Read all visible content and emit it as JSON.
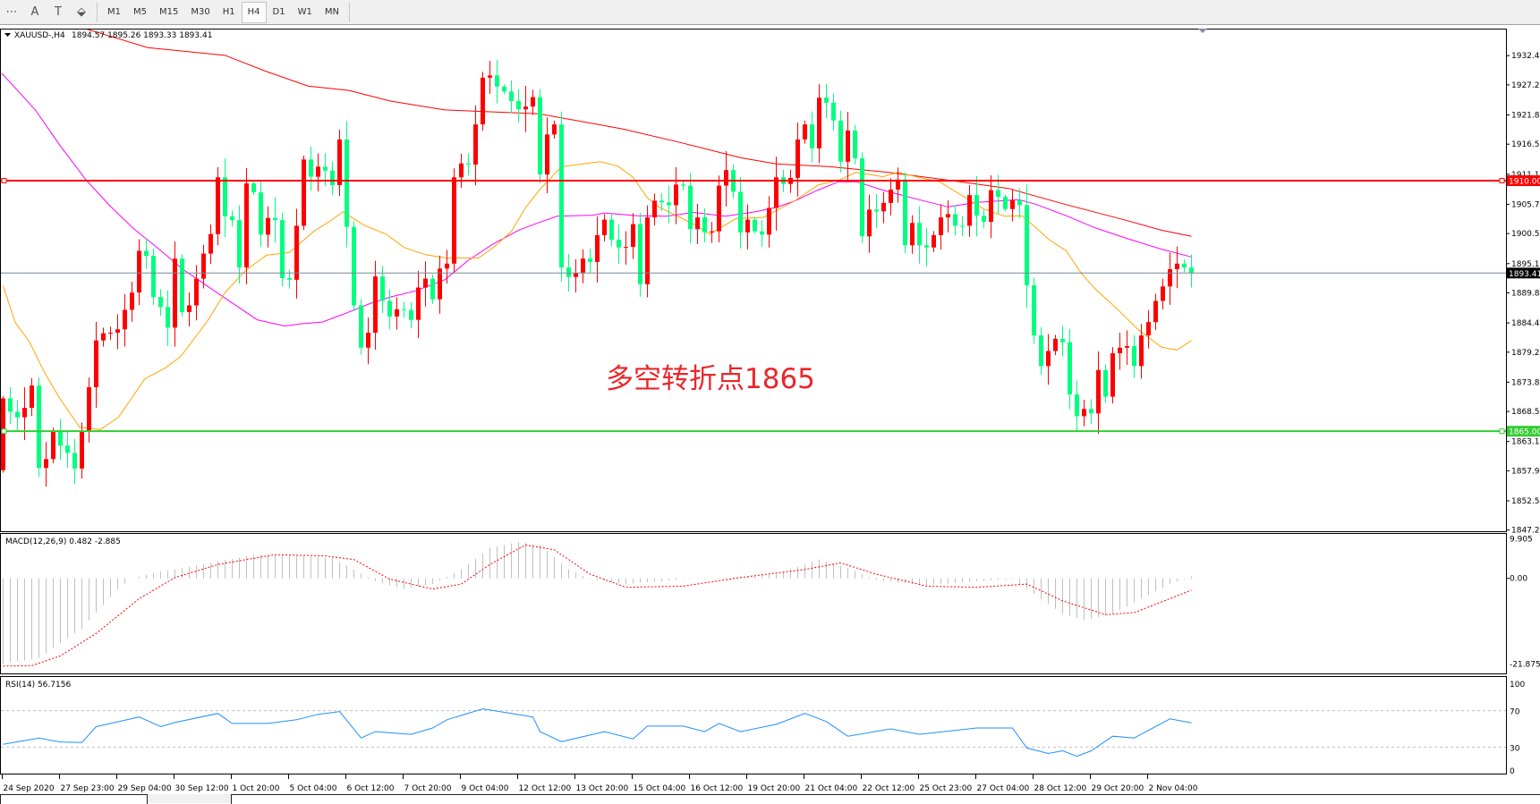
{
  "toolbar": {
    "tools": [
      {
        "name": "properties-icon",
        "glyph": "⋯"
      },
      {
        "name": "text-label-icon",
        "glyph": "A"
      },
      {
        "name": "text-box-icon",
        "glyph": "T"
      },
      {
        "name": "arrows-icon",
        "glyph": "⬙"
      }
    ],
    "timeframes": [
      "M1",
      "M5",
      "M15",
      "M30",
      "H1",
      "H4",
      "D1",
      "W1",
      "MN"
    ],
    "active_timeframe": "H4"
  },
  "chart": {
    "symbol": "XAUUSD-,H4",
    "ohlc_text": "1894.57 1895.26 1893.33 1893.41",
    "annotation": "多空转折点1865",
    "levels": [
      {
        "price": 1910.0,
        "label": "1910.00",
        "color": "#ff0000"
      },
      {
        "price": 1865.0,
        "label": "1865.00",
        "color": "#32cd32"
      }
    ],
    "current_price": {
      "price": 1893.41,
      "label": "1893.41",
      "color": "#778899"
    },
    "price_axis": [
      "1932.45",
      "1927.20",
      "1921.80",
      "1916.55",
      "1911.15",
      "1905.75",
      "1900.50",
      "1895.10",
      "1889.85",
      "1884.45",
      "1879.20",
      "1873.80",
      "1868.55",
      "1863.15",
      "1857.90",
      "1852.50",
      "1847.25"
    ]
  },
  "macd": {
    "label": "MACD(12,26,9) 0.482 -2.885",
    "axis": [
      "9.905",
      "0.00",
      "-21.875"
    ]
  },
  "rsi": {
    "label": "RSI(14) 56.7156",
    "axis": [
      "100",
      "70",
      "30",
      "0"
    ]
  },
  "time_axis": [
    "24 Sep 2020",
    "27 Sep 23:00",
    "29 Sep 04:00",
    "30 Sep 12:00",
    "1 Oct 20:00",
    "5 Oct 04:00",
    "6 Oct 12:00",
    "7 Oct 20:00",
    "9 Oct 04:00",
    "12 Oct 12:00",
    "13 Oct 20:00",
    "15 Oct 04:00",
    "16 Oct 12:00",
    "19 Oct 20:00",
    "21 Oct 04:00",
    "22 Oct 12:00",
    "25 Oct 23:00",
    "27 Oct 04:00",
    "28 Oct 12:00",
    "29 Oct 20:00",
    "2 Nov 04:00"
  ],
  "colors": {
    "bull": "#ff0000",
    "bear": "#00ff7f",
    "ma_fast": "#ffa500",
    "ma_mid": "#ff00ff",
    "ma_slow": "#ff0000",
    "macd_hist": "#c0c0c0",
    "macd_signal": "#ff0000",
    "rsi": "#1e90ff"
  },
  "chart_data": {
    "type": "candlestick",
    "bars_per_time_label": 8,
    "first_open": 1858.0,
    "closes": [
      1870.9,
      1868.5,
      1867.5,
      1869.2,
      1873.2,
      1858.4,
      1860.0,
      1864.9,
      1862.4,
      1861.1,
      1858.3,
      1864.9,
      1872.9,
      1881.3,
      1882.6,
      1882.7,
      1883.3,
      1886.8,
      1889.9,
      1897.4,
      1896.5,
      1889.1,
      1887.3,
      1883.6,
      1896.0,
      1886.4,
      1887.6,
      1892.4,
      1896.9,
      1900.4,
      1910.6,
      1903.6,
      1902.9,
      1894.4,
      1909.5,
      1907.9,
      1900.3,
      1903.3,
      1902.9,
      1892.5,
      1892.2,
      1901.9,
      1913.8,
      1910.7,
      1912.5,
      1911.8,
      1909.2,
      1917.4,
      1901.7,
      1887.6,
      1880.0,
      1882.7,
      1892.8,
      1888.4,
      1885.6,
      1886.9,
      1886.8,
      1885.0,
      1890.8,
      1892.4,
      1888.7,
      1894.2,
      1895.1,
      1910.6,
      1913.1,
      1912.9,
      1920.1,
      1928.5,
      1928.9,
      1926.9,
      1926.0,
      1924.3,
      1922.8,
      1923.3,
      1925.0,
      1911.1,
      1918.3,
      1920.1,
      1894.4,
      1892.7,
      1893.4,
      1896.0,
      1895.4,
      1900.2,
      1903.0,
      1899.4,
      1898.0,
      1898.1,
      1902.2,
      1891.4,
      1903.4,
      1906.4,
      1906.1,
      1905.6,
      1909.3,
      1909.1,
      1901.3,
      1903.4,
      1900.7,
      1900.9,
      1909.1,
      1911.9,
      1908.0,
      1900.7,
      1903.0,
      1900.9,
      1900.3,
      1905.1,
      1910.6,
      1909.4,
      1910.5,
      1917.4,
      1920.1,
      1915.8,
      1924.9,
      1924.0,
      1920.8,
      1913.4,
      1919.0,
      1914.0,
      1900.0,
      1904.8,
      1904.5,
      1906.0,
      1908.4,
      1910.2,
      1898.4,
      1902.4,
      1898.4,
      1898.0,
      1900.2,
      1903.4,
      1904.0,
      1901.9,
      1901.9,
      1907.4,
      1903.7,
      1902.6,
      1908.3,
      1907.1,
      1904.9,
      1906.5,
      1905.6,
      1891.2,
      1882.2,
      1876.7,
      1879.4,
      1881.6,
      1881.0,
      1871.6,
      1867.7,
      1869.0,
      1868.2,
      1876.0,
      1871.2,
      1879.0,
      1880.0,
      1880.3,
      1876.7,
      1882.2,
      1884.6,
      1888.4,
      1891.0,
      1894.1,
      1895.1,
      1894.4,
      1893.41
    ],
    "ylim": [
      1847.0,
      1937.1
    ],
    "moving_averages": {
      "fast": [
        [
          0,
          1891.1
        ],
        [
          1.7,
          1884.5
        ],
        [
          3.7,
          1881.0
        ],
        [
          5.8,
          1875.5
        ],
        [
          7.9,
          1870.9
        ],
        [
          10.7,
          1865.7
        ],
        [
          13.6,
          1865.3
        ],
        [
          16.1,
          1867.5
        ],
        [
          19.8,
          1874.4
        ],
        [
          22.7,
          1876.4
        ],
        [
          24.8,
          1878.4
        ],
        [
          28.5,
          1884.7
        ],
        [
          31,
          1889.9
        ],
        [
          33.9,
          1893.9
        ],
        [
          36.8,
          1896.6
        ],
        [
          40,
          1897.1
        ],
        [
          43.4,
          1900.9
        ],
        [
          45.5,
          1902.6
        ],
        [
          47.5,
          1904.4
        ],
        [
          50.4,
          1902.0
        ],
        [
          53.5,
          1900.4
        ],
        [
          56,
          1898.0
        ],
        [
          59,
          1896.7
        ],
        [
          61.9,
          1896.1
        ],
        [
          66.4,
          1896.1
        ],
        [
          68.5,
          1898.0
        ],
        [
          71,
          1900.9
        ],
        [
          73,
          1905.2
        ],
        [
          75.1,
          1908.6
        ],
        [
          78,
          1912.5
        ],
        [
          83.4,
          1913.4
        ],
        [
          85.9,
          1912.6
        ],
        [
          88,
          1910.6
        ],
        [
          90,
          1906.9
        ],
        [
          91.7,
          1905.2
        ],
        [
          94.1,
          1903.7
        ],
        [
          96.7,
          1902.0
        ],
        [
          98.7,
          1900.4
        ],
        [
          102.4,
          1903.2
        ],
        [
          106.2,
          1903.4
        ],
        [
          110.5,
          1906.3
        ],
        [
          113.8,
          1909.2
        ],
        [
          116.7,
          1910.1
        ],
        [
          119.2,
          1911.5
        ],
        [
          122.9,
          1910.7
        ],
        [
          125,
          1911.5
        ],
        [
          127.9,
          1910.6
        ],
        [
          130.8,
          1909.8
        ],
        [
          134.1,
          1907.2
        ],
        [
          137,
          1904.9
        ],
        [
          139.9,
          1903.6
        ],
        [
          142.3,
          1903.7
        ],
        [
          144.4,
          1901.4
        ],
        [
          146.1,
          1899.4
        ],
        [
          148.5,
          1897.4
        ],
        [
          150.6,
          1893.4
        ],
        [
          152.6,
          1890.5
        ],
        [
          155.6,
          1887.0
        ],
        [
          158.5,
          1883.3
        ],
        [
          161.8,
          1880.1
        ],
        [
          164,
          1879.6
        ],
        [
          166,
          1881.3
        ]
      ],
      "mid": [
        [
          -0.2,
          1929.3
        ],
        [
          4.5,
          1922.7
        ],
        [
          7.9,
          1916.4
        ],
        [
          11.6,
          1910.1
        ],
        [
          14.9,
          1905.5
        ],
        [
          18.2,
          1901.4
        ],
        [
          21.5,
          1898.0
        ],
        [
          25.2,
          1894.0
        ],
        [
          28.5,
          1891.1
        ],
        [
          31.8,
          1888.2
        ],
        [
          35.5,
          1885.0
        ],
        [
          39.3,
          1883.9
        ],
        [
          41.7,
          1884.3
        ],
        [
          44.6,
          1884.6
        ],
        [
          47.9,
          1886.2
        ],
        [
          51.2,
          1887.9
        ],
        [
          54.1,
          1889.1
        ],
        [
          57.6,
          1890.2
        ],
        [
          61.7,
          1892.2
        ],
        [
          65,
          1895.7
        ],
        [
          68.3,
          1898.5
        ],
        [
          72,
          1901.1
        ],
        [
          74.9,
          1902.5
        ],
        [
          77.4,
          1903.6
        ],
        [
          82.4,
          1903.8
        ],
        [
          84,
          1904.2
        ],
        [
          88.6,
          1903.7
        ],
        [
          92.7,
          1903.6
        ],
        [
          96.4,
          1904.3
        ],
        [
          100.9,
          1903.6
        ],
        [
          105,
          1904.4
        ],
        [
          108,
          1905.2
        ],
        [
          110.5,
          1906.3
        ],
        [
          113.8,
          1908.3
        ],
        [
          116.7,
          1909.8
        ],
        [
          119.2,
          1909.8
        ],
        [
          122.9,
          1908.3
        ],
        [
          127.9,
          1906.6
        ],
        [
          132,
          1905.3
        ],
        [
          136.1,
          1906.1
        ],
        [
          141.9,
          1906.6
        ],
        [
          144.4,
          1905.7
        ],
        [
          148.5,
          1903.7
        ],
        [
          152.6,
          1901.5
        ],
        [
          156.8,
          1899.7
        ],
        [
          161.8,
          1897.7
        ],
        [
          166,
          1896.3
        ]
      ],
      "slow": [
        [
          11.2,
          1937.4
        ],
        [
          20.2,
          1933.9
        ],
        [
          31,
          1932.5
        ],
        [
          36.8,
          1929.6
        ],
        [
          42.6,
          1927.0
        ],
        [
          48.3,
          1926.2
        ],
        [
          54.1,
          1924.3
        ],
        [
          61.7,
          1922.7
        ],
        [
          74.9,
          1922.0
        ],
        [
          86.5,
          1919.3
        ],
        [
          94.8,
          1916.8
        ],
        [
          103.1,
          1914.1
        ],
        [
          108,
          1913.0
        ],
        [
          115.5,
          1912.5
        ],
        [
          123.7,
          1911.5
        ],
        [
          132,
          1910.1
        ],
        [
          140.4,
          1908.6
        ],
        [
          148.5,
          1905.7
        ],
        [
          156.8,
          1902.9
        ],
        [
          161.8,
          1901.1
        ],
        [
          166,
          1900.0
        ]
      ]
    },
    "macd_main": [
      [
        0,
        -20.9
      ],
      [
        5,
        -19.5
      ],
      [
        11,
        -12.3
      ],
      [
        16,
        -2.6
      ],
      [
        18,
        0
      ],
      [
        22,
        1.7
      ],
      [
        27,
        3.1
      ],
      [
        35,
        5.8
      ],
      [
        41,
        5.5
      ],
      [
        46,
        5.0
      ],
      [
        49,
        2.2
      ],
      [
        52,
        -0.7
      ],
      [
        56,
        -2.6
      ],
      [
        60,
        -1.4
      ],
      [
        64,
        2.2
      ],
      [
        68,
        7.5
      ],
      [
        72,
        8.9
      ],
      [
        75,
        8.2
      ],
      [
        79,
        2.2
      ],
      [
        82,
        -0.2
      ],
      [
        87,
        -1.4
      ],
      [
        95,
        -0.2
      ],
      [
        101,
        0.2
      ],
      [
        108,
        1.0
      ],
      [
        114,
        4.6
      ],
      [
        118,
        2.6
      ],
      [
        122,
        -0.5
      ],
      [
        129,
        -1.7
      ],
      [
        136,
        -0.7
      ],
      [
        141,
        -0.2
      ],
      [
        144,
        -3.8
      ],
      [
        148,
        -8.7
      ],
      [
        151,
        -10.3
      ],
      [
        155,
        -8.7
      ],
      [
        159,
        -5.0
      ],
      [
        163,
        -1.4
      ],
      [
        166,
        0.482
      ]
    ],
    "macd_signal": [
      [
        0,
        -21.5
      ],
      [
        4,
        -21.4
      ],
      [
        8,
        -19.0
      ],
      [
        13,
        -13.5
      ],
      [
        19,
        -5.0
      ],
      [
        24,
        0.2
      ],
      [
        30,
        3.4
      ],
      [
        38,
        5.8
      ],
      [
        45,
        5.5
      ],
      [
        49,
        4.6
      ],
      [
        54,
        -0.2
      ],
      [
        60,
        -2.6
      ],
      [
        64,
        -1.4
      ],
      [
        68,
        3.4
      ],
      [
        73,
        8.2
      ],
      [
        77,
        7.0
      ],
      [
        82,
        1.0
      ],
      [
        87,
        -2.2
      ],
      [
        95,
        -1.9
      ],
      [
        103,
        0.2
      ],
      [
        112,
        2.2
      ],
      [
        117,
        3.8
      ],
      [
        122,
        1.0
      ],
      [
        129,
        -1.9
      ],
      [
        136,
        -2.2
      ],
      [
        143,
        -1.4
      ],
      [
        148,
        -5.5
      ],
      [
        154,
        -8.9
      ],
      [
        158,
        -8.4
      ],
      [
        166,
        -2.885
      ]
    ],
    "macd_ylim": [
      -21.875,
      9.905
    ],
    "rsi": [
      [
        0,
        33
      ],
      [
        5,
        40
      ],
      [
        8,
        35.5
      ],
      [
        11,
        35
      ],
      [
        13,
        52.5
      ],
      [
        19,
        63
      ],
      [
        22,
        52.5
      ],
      [
        24,
        57
      ],
      [
        30,
        67
      ],
      [
        32,
        56
      ],
      [
        37,
        56
      ],
      [
        41,
        60
      ],
      [
        44,
        66
      ],
      [
        47,
        69
      ],
      [
        50,
        40
      ],
      [
        52,
        47
      ],
      [
        57,
        44
      ],
      [
        60,
        51
      ],
      [
        62,
        60
      ],
      [
        67,
        72
      ],
      [
        71,
        67
      ],
      [
        74,
        63
      ],
      [
        75,
        47
      ],
      [
        78,
        36
      ],
      [
        84,
        47
      ],
      [
        88,
        39
      ],
      [
        90,
        53
      ],
      [
        95,
        53
      ],
      [
        98,
        47
      ],
      [
        100,
        56
      ],
      [
        103,
        47
      ],
      [
        108,
        55
      ],
      [
        112,
        67
      ],
      [
        115,
        58
      ],
      [
        118,
        42
      ],
      [
        124,
        50
      ],
      [
        128,
        44
      ],
      [
        136,
        51
      ],
      [
        141,
        51
      ],
      [
        143,
        29
      ],
      [
        146,
        23
      ],
      [
        148,
        26
      ],
      [
        150,
        20
      ],
      [
        152,
        26
      ],
      [
        155,
        42
      ],
      [
        158,
        40
      ],
      [
        163,
        61
      ],
      [
        166,
        56.7156
      ]
    ],
    "rsi_ylim": [
      0,
      100
    ],
    "rsi_levels": [
      70,
      30
    ]
  }
}
